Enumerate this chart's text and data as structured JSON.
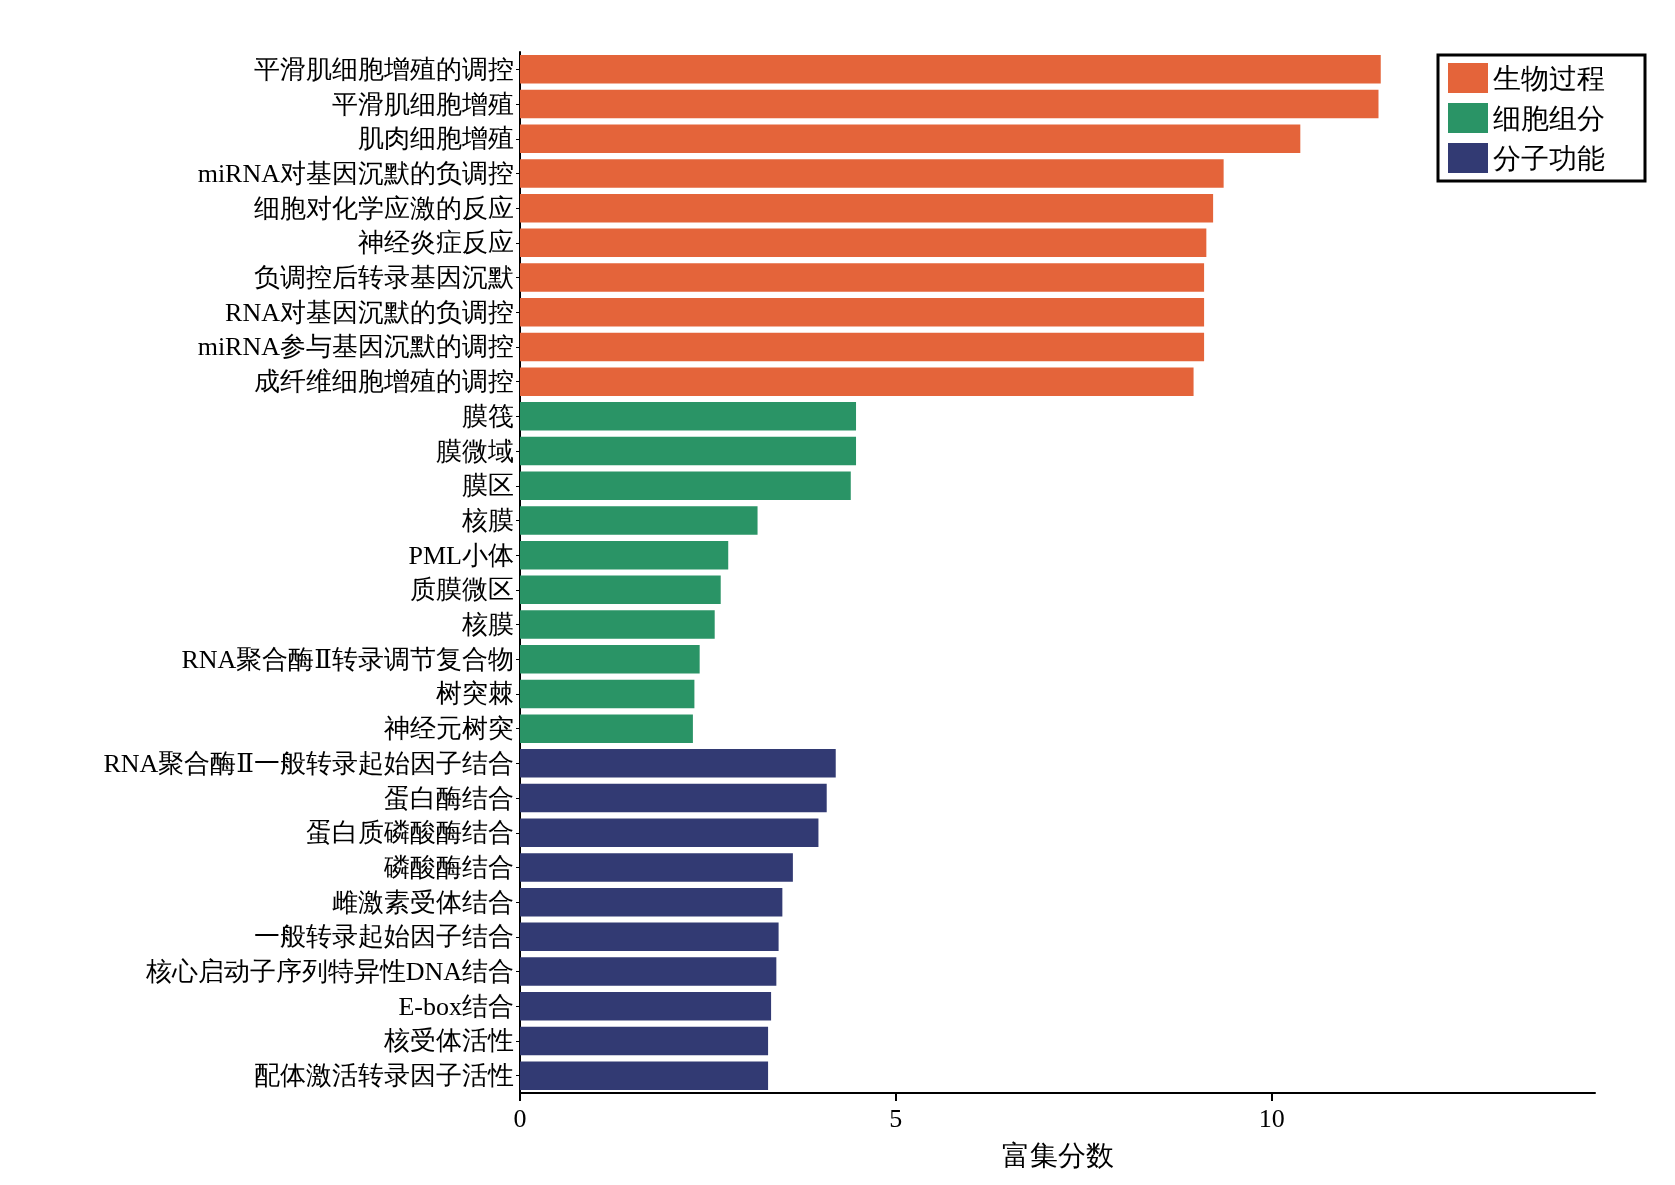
{
  "chart_data": {
    "type": "bar",
    "orientation": "horizontal",
    "xlabel": "富集分数",
    "categories": [
      "平滑肌细胞增殖的调控",
      "平滑肌细胞增殖",
      "肌肉细胞增殖",
      "miRNA对基因沉默的负调控",
      "细胞对化学应激的反应",
      "神经炎症反应",
      "负调控后转录基因沉默",
      "RNA对基因沉默的负调控",
      "miRNA参与基因沉默的调控",
      "成纤维细胞增殖的调控",
      "膜筏",
      "膜微域",
      "膜区",
      "核膜",
      "PML小体",
      "质膜微区",
      "核膜",
      "RNA聚合酶Ⅱ转录调节复合物",
      "树突棘",
      "神经元树突",
      "RNA聚合酶Ⅱ一般转录起始因子结合",
      "蛋白酶结合",
      "蛋白质磷酸酶结合",
      "磷酸酶结合",
      "雌激素受体结合",
      "一般转录起始因子结合",
      "核心启动子序列特异性DNA结合",
      "E-box结合",
      "核受体活性",
      "配体激活转录因子活性"
    ],
    "series": [
      {
        "name": "生物过程",
        "color": "#e4643a",
        "values": [
          11.45,
          11.42,
          10.38,
          9.36,
          9.22,
          9.13,
          9.1,
          9.1,
          9.1,
          8.96,
          null,
          null,
          null,
          null,
          null,
          null,
          null,
          null,
          null,
          null,
          null,
          null,
          null,
          null,
          null,
          null,
          null,
          null,
          null,
          null
        ]
      },
      {
        "name": "细胞组分",
        "color": "#2a9466",
        "values": [
          null,
          null,
          null,
          null,
          null,
          null,
          null,
          null,
          null,
          null,
          4.47,
          4.47,
          4.4,
          3.16,
          2.77,
          2.67,
          2.59,
          2.39,
          2.32,
          2.3,
          null,
          null,
          null,
          null,
          null,
          null,
          null,
          null,
          null,
          null
        ]
      },
      {
        "name": "分子功能",
        "color": "#323a73",
        "values": [
          null,
          null,
          null,
          null,
          null,
          null,
          null,
          null,
          null,
          null,
          null,
          null,
          null,
          null,
          null,
          null,
          null,
          null,
          null,
          null,
          4.2,
          4.08,
          3.97,
          3.63,
          3.49,
          3.44,
          3.41,
          3.34,
          3.3,
          3.3
        ]
      }
    ],
    "xlim": [
      0,
      14.3
    ],
    "xticks": [
      0,
      5,
      10
    ],
    "grid": false,
    "legend": "top right"
  }
}
